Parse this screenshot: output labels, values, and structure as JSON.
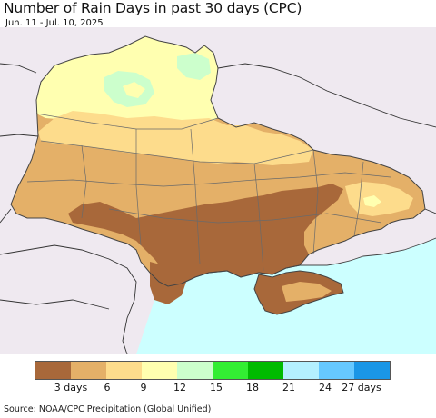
{
  "header": {
    "title": "Number of Rain Days in past 30 days (CPC)",
    "date_range": "Jun. 11 - Jul. 10, 2025"
  },
  "map": {
    "colors": {
      "background_land": "#efe9f0",
      "sea": "#ccffff",
      "border": "#5a5a5a"
    }
  },
  "legend": {
    "colors": [
      "#a8683a",
      "#e4b068",
      "#fddc8c",
      "#ffffb0",
      "#ccffcc",
      "#33ee33",
      "#00bb00",
      "#b4f0ff",
      "#66c8ff",
      "#1a96e6"
    ],
    "labels": [
      "3 days",
      "6",
      "9",
      "12",
      "15",
      "18",
      "21",
      "24",
      "27 days"
    ]
  },
  "source": "Source: NOAA/CPC Precipitation (Global Unified)"
}
